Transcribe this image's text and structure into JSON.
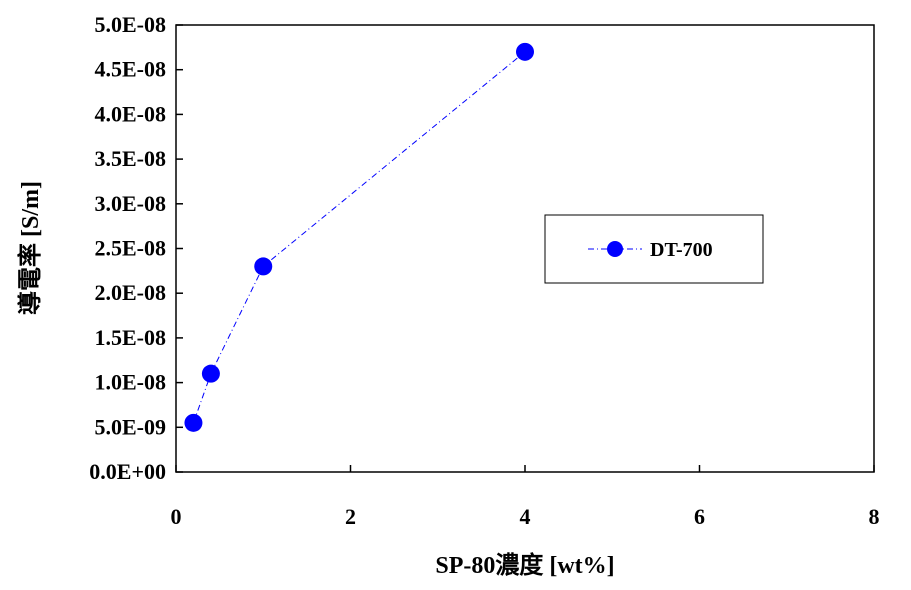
{
  "chart_data": {
    "type": "scatter",
    "title": "",
    "xlabel": "SP-80濃度 [wt%]",
    "ylabel": "導電率 [S/m]",
    "xlim": [
      0,
      8
    ],
    "ylim": [
      0,
      5e-08
    ],
    "x_ticks": [
      0,
      2,
      4,
      6,
      8
    ],
    "x_tick_labels": [
      "0",
      "2",
      "4",
      "6",
      "8"
    ],
    "y_ticks": [
      0,
      5e-09,
      1e-08,
      1.5e-08,
      2e-08,
      2.5e-08,
      3e-08,
      3.5e-08,
      4e-08,
      4.5e-08,
      5e-08
    ],
    "y_tick_labels": [
      "0.0E+00",
      "5.0E-09",
      "1.0E-08",
      "1.5E-08",
      "2.0E-08",
      "2.5E-08",
      "3.0E-08",
      "3.5E-08",
      "4.0E-08",
      "4.5E-08",
      "5.0E-08"
    ],
    "grid": false,
    "legend_position": "right-middle",
    "series": [
      {
        "name": "DT-700",
        "color": "#0000ff",
        "line_style": "dash-dot",
        "marker": "circle",
        "x": [
          0.2,
          0.4,
          1.0,
          4.0
        ],
        "y": [
          5.5e-09,
          1.1e-08,
          2.3e-08,
          4.7e-08
        ]
      }
    ]
  }
}
